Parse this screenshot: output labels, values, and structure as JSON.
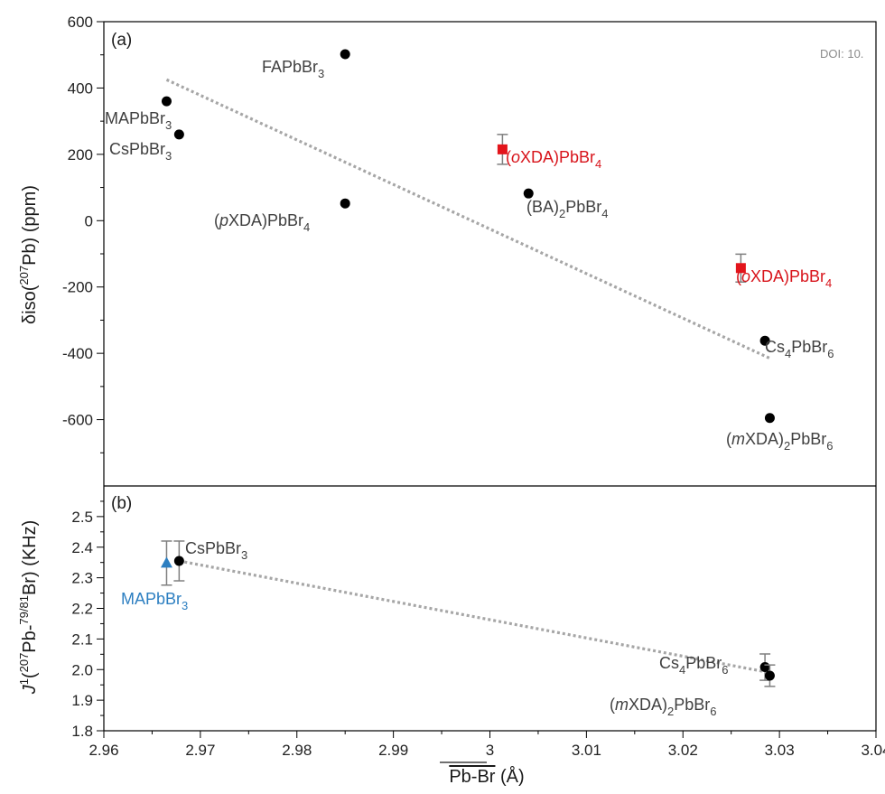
{
  "doi_text": "DOI: 10.",
  "colors": {
    "black_marker": "#000000",
    "red_marker": "#e3141b",
    "blue_marker": "#2d7fc1",
    "label_gray": "#404040",
    "label_red": "#d8141b",
    "label_blue": "#2d7fc1",
    "trend_line": "#a6a6a6",
    "error_bar": "#7f7f7f"
  },
  "chart_data": [
    {
      "type": "scatter",
      "panel_label": "(a)",
      "ylabel": "δiso(207Pb) (ppm)",
      "xlim": [
        2.96,
        3.04
      ],
      "ylim": [
        -800,
        600
      ],
      "y_tick_labels": [
        "600",
        "400",
        "200",
        "0",
        "-200",
        "-400",
        "-600"
      ],
      "y_ticks": [
        600,
        400,
        200,
        0,
        -200,
        -400,
        -600
      ],
      "trendline": {
        "x": [
          2.9665,
          3.029
        ],
        "y": [
          425,
          -415
        ]
      },
      "points": [
        {
          "name": "FAPbBr3",
          "x": 2.985,
          "y": 502,
          "marker": "circle",
          "color": "black"
        },
        {
          "name": "MAPbBr3",
          "x": 2.9665,
          "y": 360,
          "marker": "circle",
          "color": "black"
        },
        {
          "name": "CsPbBr3",
          "x": 2.9678,
          "y": 260,
          "marker": "circle",
          "color": "black"
        },
        {
          "name": "(pXDA)PbBr4",
          "x": 2.985,
          "y": 52,
          "marker": "circle",
          "color": "black"
        },
        {
          "name": "(BA)2PbBr4",
          "x": 3.004,
          "y": 82,
          "marker": "circle",
          "color": "black"
        },
        {
          "name": "(oXDA)PbBr4",
          "x": 3.0013,
          "y": 215,
          "marker": "square",
          "color": "red",
          "err": 45
        },
        {
          "name": "(oXDA)PbBr4",
          "x": 3.026,
          "y": -143,
          "marker": "square",
          "color": "red",
          "err": 42
        },
        {
          "name": "Cs4PbBr6",
          "x": 3.0285,
          "y": -362,
          "marker": "circle",
          "color": "black"
        },
        {
          "name": "(mXDA)2PbBr6",
          "x": 3.029,
          "y": -595,
          "marker": "circle",
          "color": "black"
        }
      ],
      "labels": [
        {
          "text": "FAPbBr",
          "sub": "3",
          "anchor": "FAPbBr3"
        },
        {
          "text": "MAPbBr",
          "sub": "3",
          "anchor": "MAPbBr3"
        },
        {
          "text": "CsPbBr",
          "sub": "3",
          "anchor": "CsPbBr3"
        },
        {
          "text": "(pXDA)PbBr",
          "sub": "4",
          "anchor": "(pXDA)PbBr4"
        },
        {
          "text": "(BA)2PbBr",
          "sub": "4",
          "anchor": "(BA)2PbBr4"
        },
        {
          "text": "(oXDA)PbBr",
          "sub": "4",
          "anchor": "(oXDA)PbBr4-1"
        },
        {
          "text": "(oXDA)PbBr",
          "sub": "4",
          "anchor": "(oXDA)PbBr4-2"
        },
        {
          "text": "Cs4PbBr",
          "sub": "6",
          "anchor": "Cs4PbBr6"
        },
        {
          "text": "(mXDA)2PbBr",
          "sub": "6",
          "anchor": "(mXDA)2PbBr6"
        }
      ]
    },
    {
      "type": "scatter",
      "panel_label": "(b)",
      "ylabel": "J1(207Pb-79/81Br) (KHz)",
      "xlabel": "Pb-Br (Å)",
      "xlim": [
        2.96,
        3.04
      ],
      "ylim": [
        1.8,
        2.6
      ],
      "x_tick_labels": [
        "2.96",
        "2.97",
        "2.98",
        "2.99",
        "3",
        "3.01",
        "3.02",
        "3.03",
        "3.04"
      ],
      "x_ticks": [
        2.96,
        2.97,
        2.98,
        2.99,
        3.0,
        3.01,
        3.02,
        3.03,
        3.04
      ],
      "y_tick_labels": [
        "2.5",
        "2.4",
        "2.3",
        "2.2",
        "2.1",
        "2.0",
        "1.9",
        "1.8"
      ],
      "y_ticks": [
        2.5,
        2.4,
        2.3,
        2.2,
        2.1,
        2.0,
        1.9,
        1.8
      ],
      "trendline": {
        "x": [
          2.9678,
          3.029
        ],
        "y": [
          2.355,
          1.99
        ]
      },
      "points": [
        {
          "name": "MAPbBr3",
          "x": 2.9665,
          "y": 2.348,
          "marker": "triangle",
          "color": "blue",
          "err": 0.072
        },
        {
          "name": "CsPbBr3",
          "x": 2.9678,
          "y": 2.355,
          "marker": "circle",
          "color": "black",
          "err": 0.065
        },
        {
          "name": "Cs4PbBr6",
          "x": 3.0285,
          "y": 2.008,
          "marker": "circle",
          "color": "black",
          "err": 0.043
        },
        {
          "name": "(mXDA)2PbBr6",
          "x": 3.029,
          "y": 1.98,
          "marker": "circle",
          "color": "black",
          "err": 0.035
        }
      ]
    }
  ],
  "text": {
    "a_panel": "(a)",
    "b_panel": "(b)",
    "a_ylabel_prefix": "δiso(",
    "a_ylabel_sup": "207",
    "a_ylabel_suffix": "Pb) (ppm)",
    "b_ylabel_prefix": "J",
    "b_ylabel_sup1": "1",
    "b_ylabel_mid": "(",
    "b_ylabel_sup2": "207",
    "b_ylabel_mid2": "Pb-",
    "b_ylabel_sup3": "79/81",
    "b_ylabel_suffix": "Br) (KHz)",
    "xlabel_main": "Pb-Br",
    "xlabel_unit": " (Å)",
    "lab_FAPbBr3": "FAPbBr",
    "lab_MAPbBr3": "MAPbBr",
    "lab_CsPbBr3": "CsPbBr",
    "lab_pXDA_a": "(",
    "lab_pXDA_italic": "p",
    "lab_pXDA_b": "XDA)PbBr",
    "lab_BA_a": "(BA)",
    "lab_BA_sub": "2",
    "lab_BA_b": "PbBr",
    "lab_oXDA_a": "(",
    "lab_oXDA_italic": "o",
    "lab_oXDA_b": "XDA)PbBr",
    "lab_Cs4_a": "Cs",
    "lab_Cs4_sub": "4",
    "lab_Cs4_b": "PbBr",
    "lab_mXDA_a": "(",
    "lab_mXDA_italic": "m",
    "lab_mXDA_b": "XDA)",
    "lab_mXDA_sub": "2",
    "lab_mXDA_c": "PbBr",
    "sub3": "3",
    "sub4": "4",
    "sub6": "6"
  }
}
